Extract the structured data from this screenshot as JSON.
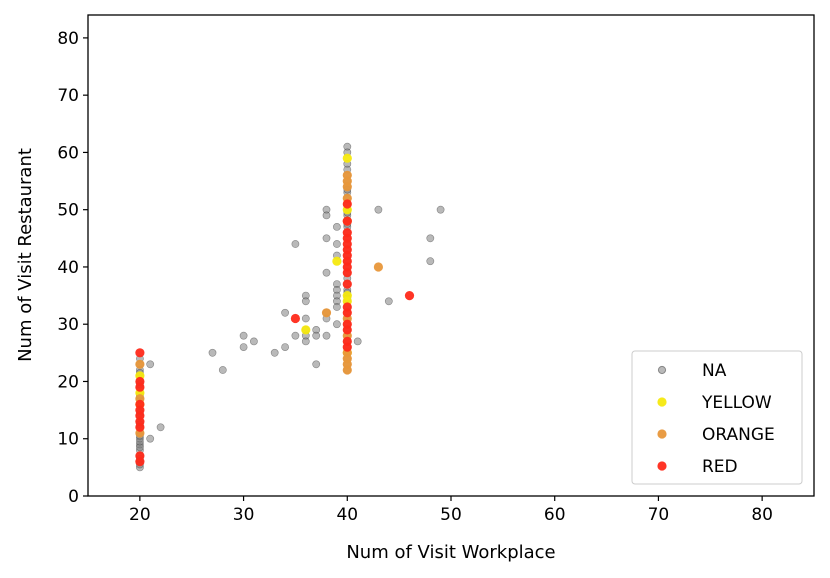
{
  "chart_data": {
    "type": "scatter",
    "xlabel": "Num of Visit Workplace",
    "ylabel": "Num of Visit Restaurant",
    "xlim": [
      15,
      85
    ],
    "ylim": [
      0,
      84
    ],
    "xticks": [
      20,
      30,
      40,
      50,
      60,
      70,
      80
    ],
    "yticks": [
      0,
      10,
      20,
      30,
      40,
      50,
      60,
      70,
      80
    ],
    "grid": false,
    "legend_position": "lower-right",
    "series": [
      {
        "name": "NA",
        "color": "#808080",
        "points": [
          [
            20,
            5
          ],
          [
            20,
            6
          ],
          [
            20,
            7
          ],
          [
            20,
            8
          ],
          [
            20,
            9
          ],
          [
            20,
            10
          ],
          [
            20,
            11
          ],
          [
            20,
            12
          ],
          [
            20,
            13
          ],
          [
            20,
            14
          ],
          [
            20,
            15
          ],
          [
            20,
            16
          ],
          [
            20,
            17
          ],
          [
            20,
            18
          ],
          [
            20,
            19
          ],
          [
            20,
            20
          ],
          [
            20,
            21
          ],
          [
            20,
            22
          ],
          [
            20,
            23
          ],
          [
            20,
            5.5
          ],
          [
            20,
            6.5
          ],
          [
            20,
            8.5
          ],
          [
            20,
            9.5
          ],
          [
            20,
            10.5
          ],
          [
            20,
            12.5
          ],
          [
            20,
            14.5
          ],
          [
            20,
            17.5
          ],
          [
            20,
            19.5
          ],
          [
            20,
            21.5
          ],
          [
            20,
            24
          ],
          [
            21,
            10
          ],
          [
            21,
            23
          ],
          [
            22,
            12
          ],
          [
            27,
            25
          ],
          [
            28,
            22
          ],
          [
            30,
            28
          ],
          [
            30,
            26
          ],
          [
            31,
            27
          ],
          [
            33,
            25
          ],
          [
            34,
            26
          ],
          [
            34,
            32
          ],
          [
            35,
            44
          ],
          [
            35,
            28
          ],
          [
            36,
            35
          ],
          [
            36,
            34
          ],
          [
            36,
            31
          ],
          [
            36,
            29
          ],
          [
            36,
            28
          ],
          [
            36,
            27
          ],
          [
            37,
            29
          ],
          [
            37,
            28
          ],
          [
            37,
            23
          ],
          [
            38,
            50
          ],
          [
            38,
            49
          ],
          [
            38,
            45
          ],
          [
            38,
            39
          ],
          [
            38,
            32
          ],
          [
            38,
            31
          ],
          [
            38,
            28
          ],
          [
            39,
            47
          ],
          [
            39,
            44
          ],
          [
            39,
            42
          ],
          [
            39,
            37
          ],
          [
            39,
            36
          ],
          [
            39,
            35
          ],
          [
            39,
            34
          ],
          [
            39,
            33
          ],
          [
            39,
            30
          ],
          [
            40,
            61
          ],
          [
            40,
            60
          ],
          [
            40,
            58
          ],
          [
            40,
            57
          ],
          [
            40,
            56
          ],
          [
            40,
            55
          ],
          [
            40,
            54
          ],
          [
            40,
            53
          ],
          [
            40,
            52
          ],
          [
            40,
            51
          ],
          [
            40,
            50
          ],
          [
            40,
            49
          ],
          [
            40,
            48
          ],
          [
            40,
            47
          ],
          [
            40,
            46
          ],
          [
            40,
            45
          ],
          [
            40,
            44
          ],
          [
            40,
            43
          ],
          [
            40,
            42
          ],
          [
            40,
            41
          ],
          [
            40,
            40
          ],
          [
            40,
            39
          ],
          [
            40,
            38
          ],
          [
            40,
            37
          ],
          [
            40,
            36
          ],
          [
            40,
            35
          ],
          [
            40,
            34
          ],
          [
            40,
            33
          ],
          [
            40,
            32
          ],
          [
            40,
            31
          ],
          [
            40,
            30
          ],
          [
            40,
            29
          ],
          [
            40,
            28
          ],
          [
            40,
            27
          ],
          [
            40,
            26
          ],
          [
            40,
            25
          ],
          [
            40,
            24
          ],
          [
            40,
            23
          ],
          [
            40,
            22
          ],
          [
            40,
            53.5
          ],
          [
            40,
            49.5
          ],
          [
            40,
            47.5
          ],
          [
            40,
            35.5
          ],
          [
            40,
            34.5
          ],
          [
            41,
            27
          ],
          [
            43,
            50
          ],
          [
            44,
            34
          ],
          [
            48,
            45
          ],
          [
            48,
            41
          ],
          [
            49,
            50
          ]
        ]
      },
      {
        "name": "YELLOW",
        "color": "#f5e90f",
        "points": [
          [
            20,
            21
          ],
          [
            20,
            18
          ],
          [
            20,
            16
          ],
          [
            36,
            29
          ],
          [
            39,
            41
          ],
          [
            40,
            59
          ],
          [
            40,
            50
          ],
          [
            40,
            35
          ],
          [
            40,
            34
          ],
          [
            40,
            25
          ]
        ]
      },
      {
        "name": "ORANGE",
        "color": "#e8973a",
        "points": [
          [
            20,
            23
          ],
          [
            20,
            17
          ],
          [
            20,
            11
          ],
          [
            38,
            32
          ],
          [
            40,
            56
          ],
          [
            40,
            55
          ],
          [
            40,
            54
          ],
          [
            40,
            52
          ],
          [
            40,
            48
          ],
          [
            40,
            31
          ],
          [
            40,
            28
          ],
          [
            40,
            25
          ],
          [
            40,
            24
          ],
          [
            40,
            23
          ],
          [
            40,
            22
          ],
          [
            43,
            40
          ]
        ]
      },
      {
        "name": "RED",
        "color": "#ff2a1a",
        "points": [
          [
            20,
            25
          ],
          [
            20,
            20
          ],
          [
            20,
            19
          ],
          [
            20,
            16
          ],
          [
            20,
            15
          ],
          [
            20,
            14
          ],
          [
            20,
            13
          ],
          [
            20,
            12
          ],
          [
            20,
            7
          ],
          [
            20,
            6
          ],
          [
            35,
            31
          ],
          [
            46,
            35
          ],
          [
            40,
            51
          ],
          [
            40,
            48
          ],
          [
            40,
            46
          ],
          [
            40,
            45
          ],
          [
            40,
            44
          ],
          [
            40,
            43
          ],
          [
            40,
            42
          ],
          [
            40,
            41
          ],
          [
            40,
            40
          ],
          [
            40,
            39
          ],
          [
            40,
            37
          ],
          [
            40,
            33
          ],
          [
            40,
            32
          ],
          [
            40,
            30
          ],
          [
            40,
            29
          ],
          [
            40,
            27
          ],
          [
            40,
            26
          ]
        ]
      }
    ]
  }
}
